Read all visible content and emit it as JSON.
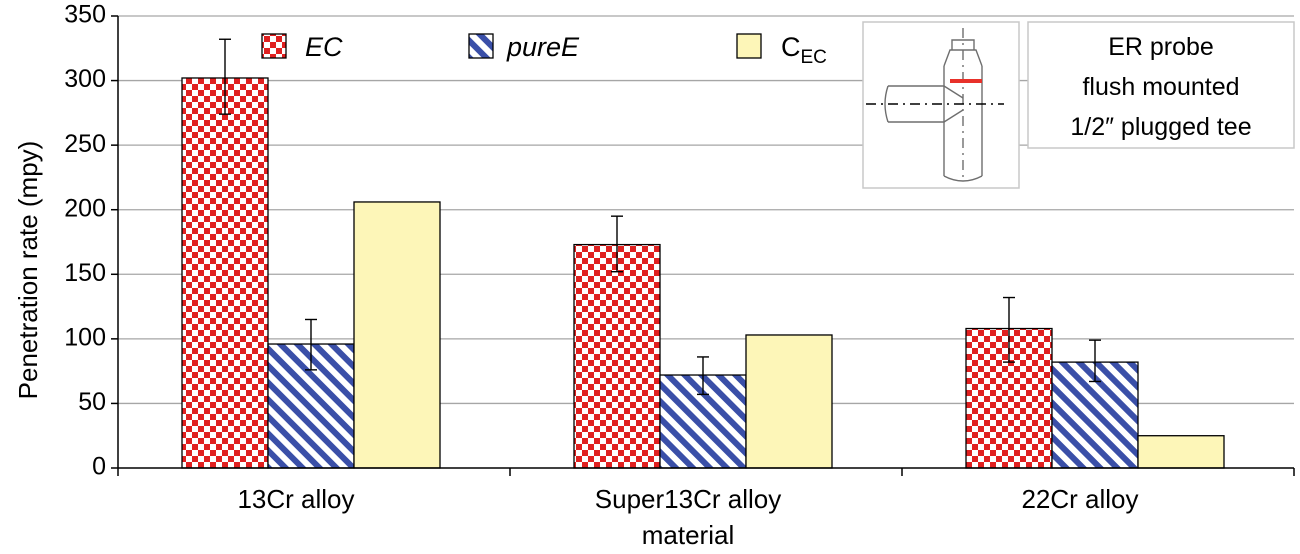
{
  "chart_data": {
    "type": "bar",
    "categories": [
      "13Cr alloy",
      "Super13Cr alloy material",
      "22Cr alloy"
    ],
    "category_lines": [
      [
        "13Cr alloy"
      ],
      [
        "Super13Cr alloy",
        "material"
      ],
      [
        "22Cr alloy"
      ]
    ],
    "ylabel": "Penetration rate (mpy)",
    "xlabel": "",
    "ylim": [
      0,
      350
    ],
    "yticks": [
      0,
      50,
      100,
      150,
      200,
      250,
      300,
      350
    ],
    "grid": true,
    "series": [
      {
        "name": "EC",
        "label_main": "EC",
        "label_sub": "",
        "pattern": "checker",
        "color": "#e02020",
        "values": [
          302,
          173,
          108
        ],
        "errors": [
          [
            274,
            332
          ],
          [
            152,
            195
          ],
          [
            82,
            132
          ]
        ]
      },
      {
        "name": "pureE",
        "label_main": "pureE",
        "label_sub": "",
        "pattern": "diagonal",
        "color": "#3a4fa8",
        "values": [
          96,
          72,
          82
        ],
        "errors": [
          [
            76,
            115
          ],
          [
            57,
            86
          ],
          [
            67,
            99
          ]
        ]
      },
      {
        "name": "CEC",
        "label_main": "C",
        "label_sub": "EC",
        "pattern": "solid",
        "color": "#fdf6b8",
        "values": [
          206,
          103,
          25
        ],
        "errors": [
          null,
          null,
          null
        ]
      }
    ],
    "legend_position": "top",
    "annotation": {
      "lines": [
        "ER probe",
        "flush mounted",
        "1/2″ plugged tee"
      ]
    }
  },
  "colors": {
    "grid": "#a6a6a6",
    "axis": "#000000",
    "probe_mark": "#e8312a"
  }
}
